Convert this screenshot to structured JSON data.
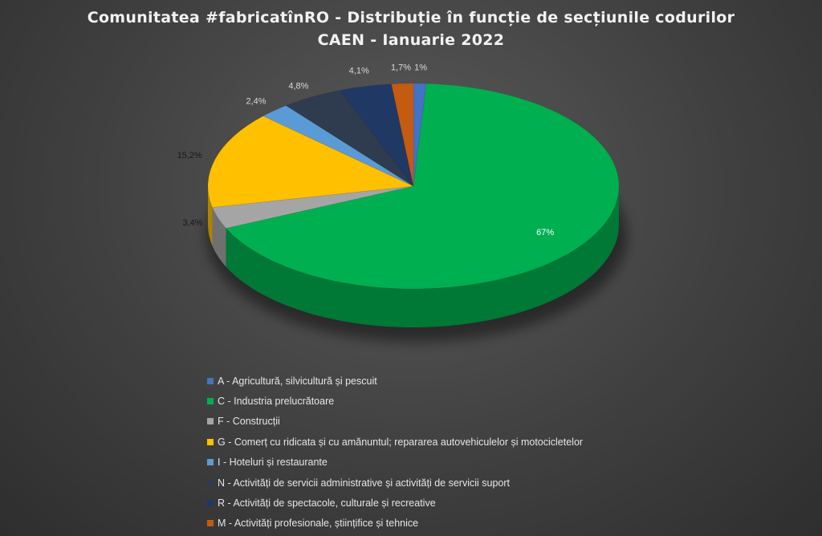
{
  "chart_data": {
    "type": "pie",
    "title": "Comunitatea #fabricatînRO - Distribuție în funcție de secțiunile codurilor CAEN - Ianuarie 2022",
    "title_lines": [
      "Comunitatea #fabricatînRO - Distribuție în funcție de secțiunile codurilor",
      "CAEN - Ianuarie 2022"
    ],
    "legend_position": "bottom",
    "slices": [
      {
        "label": "A - Agricultură, silvicultură și pescuit",
        "value": 1,
        "value_label": "1%",
        "color": "#4472c4"
      },
      {
        "label": "C - Industria prelucrătoare",
        "value": 67,
        "value_label": "67%",
        "color": "#00b050"
      },
      {
        "label": "F - Construcții",
        "value": 3.4,
        "value_label": "3,4%",
        "color": "#a5a5a5"
      },
      {
        "label": "G - Comerț cu ridicata și cu amănuntul; repararea autovehiculelor și motocicletelor",
        "value": 15.2,
        "value_label": "15,2%",
        "color": "#ffc000"
      },
      {
        "label": "I - Hoteluri și restaurante",
        "value": 2.4,
        "value_label": "2,4%",
        "color": "#5b9bd5"
      },
      {
        "label": "N - Activități de servicii administrative și activități de servicii suport",
        "value": 4.8,
        "value_label": "4,8%",
        "color": "#2f3b4f"
      },
      {
        "label": "R - Activități de spectacole, culturale și recreative",
        "value": 4.1,
        "value_label": "4,1%",
        "color": "#203864"
      },
      {
        "label": "M - Activități profesionale, științifice și tehnice",
        "value": 1.7,
        "value_label": "1,7%",
        "color": "#c55a11"
      }
    ]
  }
}
